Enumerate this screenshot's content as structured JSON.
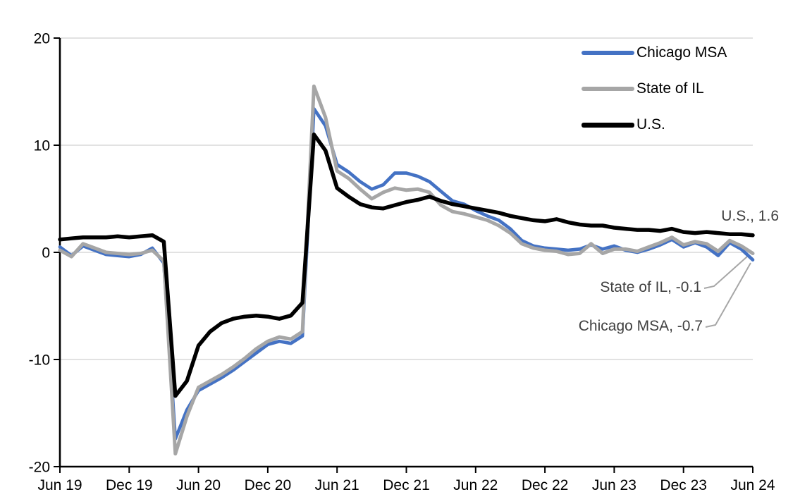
{
  "page": {
    "background": "#FFFFFF"
  },
  "chart_data": {
    "type": "line",
    "months": [
      "2019-06",
      "2019-07",
      "2019-08",
      "2019-09",
      "2019-10",
      "2019-11",
      "2019-12",
      "2020-01",
      "2020-02",
      "2020-03",
      "2020-04",
      "2020-05",
      "2020-06",
      "2020-07",
      "2020-08",
      "2020-09",
      "2020-10",
      "2020-11",
      "2020-12",
      "2021-01",
      "2021-02",
      "2021-03",
      "2021-04",
      "2021-05",
      "2021-06",
      "2021-07",
      "2021-08",
      "2021-09",
      "2021-10",
      "2021-11",
      "2021-12",
      "2022-01",
      "2022-02",
      "2022-03",
      "2022-04",
      "2022-05",
      "2022-06",
      "2022-07",
      "2022-08",
      "2022-09",
      "2022-10",
      "2022-11",
      "2022-12",
      "2023-01",
      "2023-02",
      "2023-03",
      "2023-04",
      "2023-05",
      "2023-06",
      "2023-07",
      "2023-08",
      "2023-09",
      "2023-10",
      "2023-11",
      "2023-12",
      "2024-01",
      "2024-02",
      "2024-03",
      "2024-04",
      "2024-05",
      "2024-06"
    ],
    "series": [
      {
        "name": "Chicago MSA",
        "color": "#4472C4",
        "values": [
          0.5,
          -0.3,
          0.6,
          0.2,
          -0.2,
          -0.3,
          -0.4,
          -0.2,
          0.4,
          -1.0,
          -17.4,
          -14.7,
          -12.9,
          -12.3,
          -11.7,
          -11.0,
          -10.2,
          -9.4,
          -8.6,
          -8.3,
          -8.5,
          -7.8,
          13.4,
          11.8,
          8.2,
          7.5,
          6.6,
          5.9,
          6.3,
          7.4,
          7.4,
          7.1,
          6.6,
          5.7,
          4.8,
          4.5,
          3.9,
          3.4,
          3.0,
          2.2,
          1.1,
          0.6,
          0.4,
          0.3,
          0.2,
          0.3,
          0.7,
          0.3,
          0.6,
          0.2,
          0.0,
          0.3,
          0.7,
          1.2,
          0.5,
          0.9,
          0.5,
          -0.3,
          0.9,
          0.3,
          -0.7
        ]
      },
      {
        "name": "State of IL",
        "color": "#A6A6A6",
        "values": [
          0.2,
          -0.4,
          0.8,
          0.4,
          0.0,
          -0.1,
          -0.2,
          -0.1,
          0.2,
          -0.8,
          -18.8,
          -15.3,
          -12.6,
          -12.0,
          -11.4,
          -10.7,
          -9.9,
          -9.0,
          -8.3,
          -7.9,
          -8.1,
          -7.4,
          15.5,
          12.6,
          7.6,
          6.9,
          5.9,
          5.0,
          5.6,
          6.0,
          5.8,
          5.9,
          5.6,
          4.4,
          3.8,
          3.6,
          3.3,
          3.0,
          2.5,
          1.8,
          0.8,
          0.4,
          0.2,
          0.1,
          -0.2,
          -0.1,
          0.8,
          -0.1,
          0.3,
          0.3,
          0.1,
          0.5,
          0.9,
          1.4,
          0.7,
          1.0,
          0.8,
          0.1,
          1.1,
          0.6,
          -0.1
        ]
      },
      {
        "name": "U.S.",
        "color": "#000000",
        "values": [
          1.2,
          1.3,
          1.4,
          1.4,
          1.4,
          1.5,
          1.4,
          1.5,
          1.6,
          1.0,
          -13.4,
          -12.0,
          -8.7,
          -7.4,
          -6.6,
          -6.2,
          -6.0,
          -5.9,
          -6.0,
          -6.2,
          -5.9,
          -4.7,
          11.0,
          9.5,
          6.0,
          5.2,
          4.5,
          4.2,
          4.1,
          4.4,
          4.7,
          4.9,
          5.2,
          4.8,
          4.5,
          4.3,
          4.1,
          3.9,
          3.7,
          3.4,
          3.2,
          3.0,
          2.9,
          3.1,
          2.8,
          2.6,
          2.5,
          2.5,
          2.3,
          2.2,
          2.1,
          2.1,
          2.0,
          2.2,
          1.9,
          1.8,
          1.9,
          1.8,
          1.7,
          1.7,
          1.6
        ]
      }
    ],
    "y_axis": {
      "range": [
        -20,
        20
      ],
      "ticks": [
        20,
        10,
        0,
        -10,
        -20
      ],
      "tick_labels": [
        "20",
        "10",
        "0",
        "-10",
        "-20"
      ],
      "gridlines": [
        20,
        10,
        0,
        -10
      ]
    },
    "x_axis": {
      "tick_labels": [
        "Jun 19",
        "Dec 19",
        "Jun 20",
        "Dec 20",
        "Jun 21",
        "Dec 21",
        "Jun 22",
        "Dec 22",
        "Jun 23",
        "Dec 23",
        "Jun 24"
      ],
      "tick_month_indices": [
        0,
        6,
        12,
        18,
        24,
        30,
        36,
        42,
        48,
        54,
        60
      ]
    },
    "legend": {
      "position": "top-right",
      "entries": [
        "Chicago MSA",
        "State of IL",
        "U.S."
      ]
    },
    "annotations": [
      {
        "text": "U.S., 1.6"
      },
      {
        "text": "State of IL, -0.1"
      },
      {
        "text": "Chicago MSA, -0.7"
      }
    ],
    "grid_color": "#D9D9D9",
    "axis_color": "#000000",
    "annotation_color": "#404040",
    "leader_color": "#A6A6A6"
  }
}
